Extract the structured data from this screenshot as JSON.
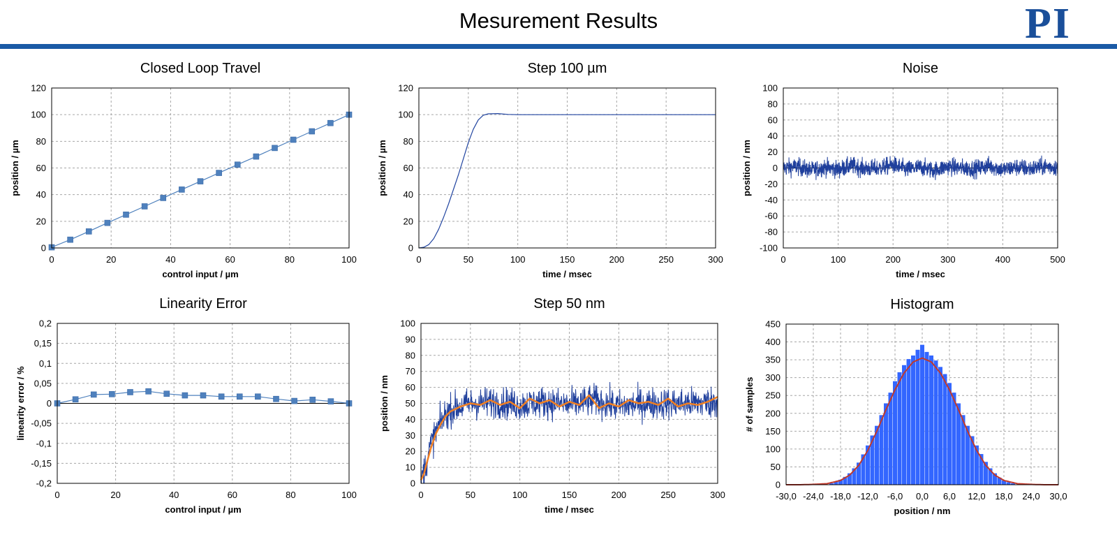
{
  "header": {
    "title": "Mesurement Results",
    "logo_text": "PI",
    "accent_color": "#1a5aa6"
  },
  "chart_data": [
    {
      "id": "closed_loop_travel",
      "type": "line",
      "title": "Closed Loop Travel",
      "xlabel": "control input / µm",
      "ylabel": "position / µm",
      "xlim": [
        0,
        100
      ],
      "ylim": [
        0,
        120
      ],
      "xticks": [
        "0",
        "20",
        "40",
        "60",
        "80",
        "100"
      ],
      "yticks": [
        "0",
        "20",
        "40",
        "60",
        "80",
        "100",
        "120"
      ],
      "grid": true,
      "series": [
        {
          "marker": "square",
          "color": "#4f81bd",
          "x": [
            0,
            6.25,
            12.5,
            18.75,
            25,
            31.25,
            37.5,
            43.75,
            50,
            56.25,
            62.5,
            68.75,
            75,
            81.25,
            87.5,
            93.75,
            100
          ],
          "y": [
            0.5,
            6.2,
            12.4,
            18.8,
            25,
            31.2,
            37.5,
            43.8,
            50,
            56.3,
            62.5,
            68.6,
            75,
            81.2,
            87.5,
            93.7,
            100
          ]
        }
      ]
    },
    {
      "id": "step_100um",
      "type": "line",
      "title": "Step 100 µm",
      "xlabel": "time / msec",
      "ylabel": "position / µm",
      "xlim": [
        0,
        300
      ],
      "ylim": [
        0,
        120
      ],
      "xticks": [
        "0",
        "50",
        "100",
        "150",
        "200",
        "250",
        "300"
      ],
      "yticks": [
        "0",
        "20",
        "40",
        "60",
        "80",
        "100",
        "120"
      ],
      "grid": true,
      "series": [
        {
          "color": "#2144a0",
          "x": [
            0,
            5,
            10,
            15,
            20,
            25,
            30,
            35,
            40,
            45,
            50,
            55,
            60,
            65,
            70,
            80,
            90,
            100,
            150,
            200,
            250,
            300
          ],
          "y": [
            0,
            0.5,
            2.5,
            7,
            14,
            23,
            33,
            44,
            55,
            67,
            79,
            89,
            96,
            99.5,
            100.6,
            100.8,
            100.2,
            100,
            100,
            100,
            100,
            100
          ]
        }
      ]
    },
    {
      "id": "noise",
      "type": "line",
      "title": "Noise",
      "xlabel": "time / msec",
      "ylabel": "position / nm",
      "xlim": [
        0,
        500
      ],
      "ylim": [
        -100,
        100
      ],
      "xticks": [
        "0",
        "100",
        "200",
        "300",
        "400",
        "500"
      ],
      "yticks": [
        "-100",
        "-80",
        "-60",
        "-40",
        "-20",
        "0",
        "20",
        "40",
        "60",
        "80",
        "100"
      ],
      "grid": true,
      "series": [
        {
          "color": "#1f3f9c",
          "description_range": [
            -22,
            22
          ],
          "x": [
            0,
            25,
            50,
            75,
            100,
            125,
            150,
            175,
            200,
            225,
            250,
            275,
            300,
            325,
            350,
            375,
            400,
            425,
            450,
            475,
            500
          ],
          "y": [
            0,
            2,
            -3,
            1,
            -2,
            3,
            -1,
            0,
            4,
            -2,
            1,
            -3,
            2,
            0,
            -1,
            3,
            -2,
            1,
            -1,
            2,
            1
          ]
        }
      ]
    },
    {
      "id": "linearity_error",
      "type": "line",
      "title": "Linearity Error",
      "xlabel": "control input / µm",
      "ylabel": "linearity error / %",
      "xlim": [
        0,
        100
      ],
      "ylim": [
        -0.2,
        0.2
      ],
      "xticks": [
        "0",
        "20",
        "40",
        "60",
        "80",
        "100"
      ],
      "yticks": [
        "-0,2",
        "-0,15",
        "-0,1",
        "-0,05",
        "0",
        "0,05",
        "0,1",
        "0,15",
        "0,2"
      ],
      "grid": true,
      "series": [
        {
          "marker": "square",
          "color": "#4f81bd",
          "x": [
            0,
            6.25,
            12.5,
            18.75,
            25,
            31.25,
            37.5,
            43.75,
            50,
            56.25,
            62.5,
            68.75,
            75,
            81.25,
            87.5,
            93.75,
            100
          ],
          "y": [
            0,
            0.01,
            0.022,
            0.023,
            0.028,
            0.03,
            0.024,
            0.02,
            0.02,
            0.017,
            0.017,
            0.017,
            0.011,
            0.006,
            0.009,
            0.005,
            0
          ]
        }
      ]
    },
    {
      "id": "step_50nm",
      "type": "line",
      "title": "Step 50 nm",
      "xlabel": "time / msec",
      "ylabel": "position / nm",
      "xlim": [
        0,
        300
      ],
      "ylim": [
        0,
        100
      ],
      "xticks": [
        "0",
        "50",
        "100",
        "150",
        "200",
        "250",
        "300"
      ],
      "yticks": [
        "0",
        "10",
        "20",
        "30",
        "40",
        "50",
        "60",
        "70",
        "80",
        "90",
        "100"
      ],
      "grid": true,
      "series": [
        {
          "color": "#1f3f9c",
          "x": [
            0,
            5,
            10,
            15,
            20,
            25,
            30,
            40,
            50,
            60,
            75,
            100,
            125,
            150,
            175,
            200,
            225,
            250,
            275,
            300
          ],
          "y": [
            2,
            12,
            24,
            32,
            38,
            43,
            46,
            48,
            50,
            50,
            51,
            49,
            51,
            49,
            52,
            48,
            50,
            50,
            50,
            51
          ]
        },
        {
          "color": "#f07f22",
          "x": [
            0,
            3,
            6,
            10,
            15,
            20,
            25,
            30,
            40,
            50,
            60,
            70,
            80,
            90,
            100,
            110,
            120,
            130,
            140,
            150,
            160,
            170,
            180,
            190,
            200,
            210,
            220,
            230,
            240,
            250,
            260,
            270,
            280,
            290,
            300
          ],
          "y": [
            2,
            6,
            13,
            22,
            31,
            37,
            42,
            45,
            48,
            50,
            49,
            52,
            49,
            51,
            47,
            53,
            50,
            52,
            48,
            51,
            49,
            55,
            47,
            50,
            48,
            52,
            50,
            51,
            49,
            53,
            48,
            50,
            49,
            51,
            54
          ]
        }
      ]
    },
    {
      "id": "histogram",
      "type": "bar",
      "title": "Histogram",
      "xlabel": "position / nm",
      "ylabel": "# of samples",
      "xlim": [
        -30,
        30
      ],
      "ylim": [
        0,
        450
      ],
      "xticks": [
        "-30,0",
        "-24,0",
        "-18,0",
        "-12,0",
        "-6,0",
        "0,0",
        "6,0",
        "12,0",
        "18,0",
        "24,0",
        "30,0"
      ],
      "yticks": [
        "0",
        "50",
        "100",
        "150",
        "200",
        "250",
        "300",
        "350",
        "400",
        "450"
      ],
      "grid": true,
      "bars": {
        "color": "#3366ff",
        "x": [
          -20,
          -19,
          -18,
          -17,
          -16,
          -15,
          -14,
          -13,
          -12,
          -11,
          -10,
          -9,
          -8,
          -7,
          -6,
          -5,
          -4,
          -3,
          -2,
          -1,
          0,
          1,
          2,
          3,
          4,
          5,
          6,
          7,
          8,
          9,
          10,
          11,
          12,
          13,
          14,
          15,
          16,
          17,
          18,
          19,
          20
        ],
        "values": [
          4,
          8,
          14,
          22,
          32,
          46,
          62,
          85,
          110,
          138,
          165,
          195,
          228,
          258,
          290,
          315,
          335,
          352,
          362,
          378,
          392,
          372,
          362,
          348,
          330,
          310,
          285,
          258,
          228,
          195,
          165,
          136,
          110,
          86,
          64,
          46,
          32,
          20,
          12,
          7,
          4
        ]
      },
      "fit": {
        "color": "#c0392b",
        "x": [
          -30,
          -27,
          -24,
          -21,
          -18,
          -16,
          -14,
          -12,
          -10,
          -8,
          -6,
          -4,
          -2,
          0,
          2,
          4,
          6,
          8,
          10,
          12,
          14,
          16,
          18,
          21,
          24,
          27,
          30
        ],
        "y": [
          0,
          0,
          1,
          3,
          12,
          27,
          54,
          96,
          150,
          210,
          266,
          313,
          344,
          355,
          344,
          313,
          266,
          210,
          150,
          96,
          54,
          27,
          12,
          3,
          1,
          0,
          0
        ]
      }
    }
  ]
}
